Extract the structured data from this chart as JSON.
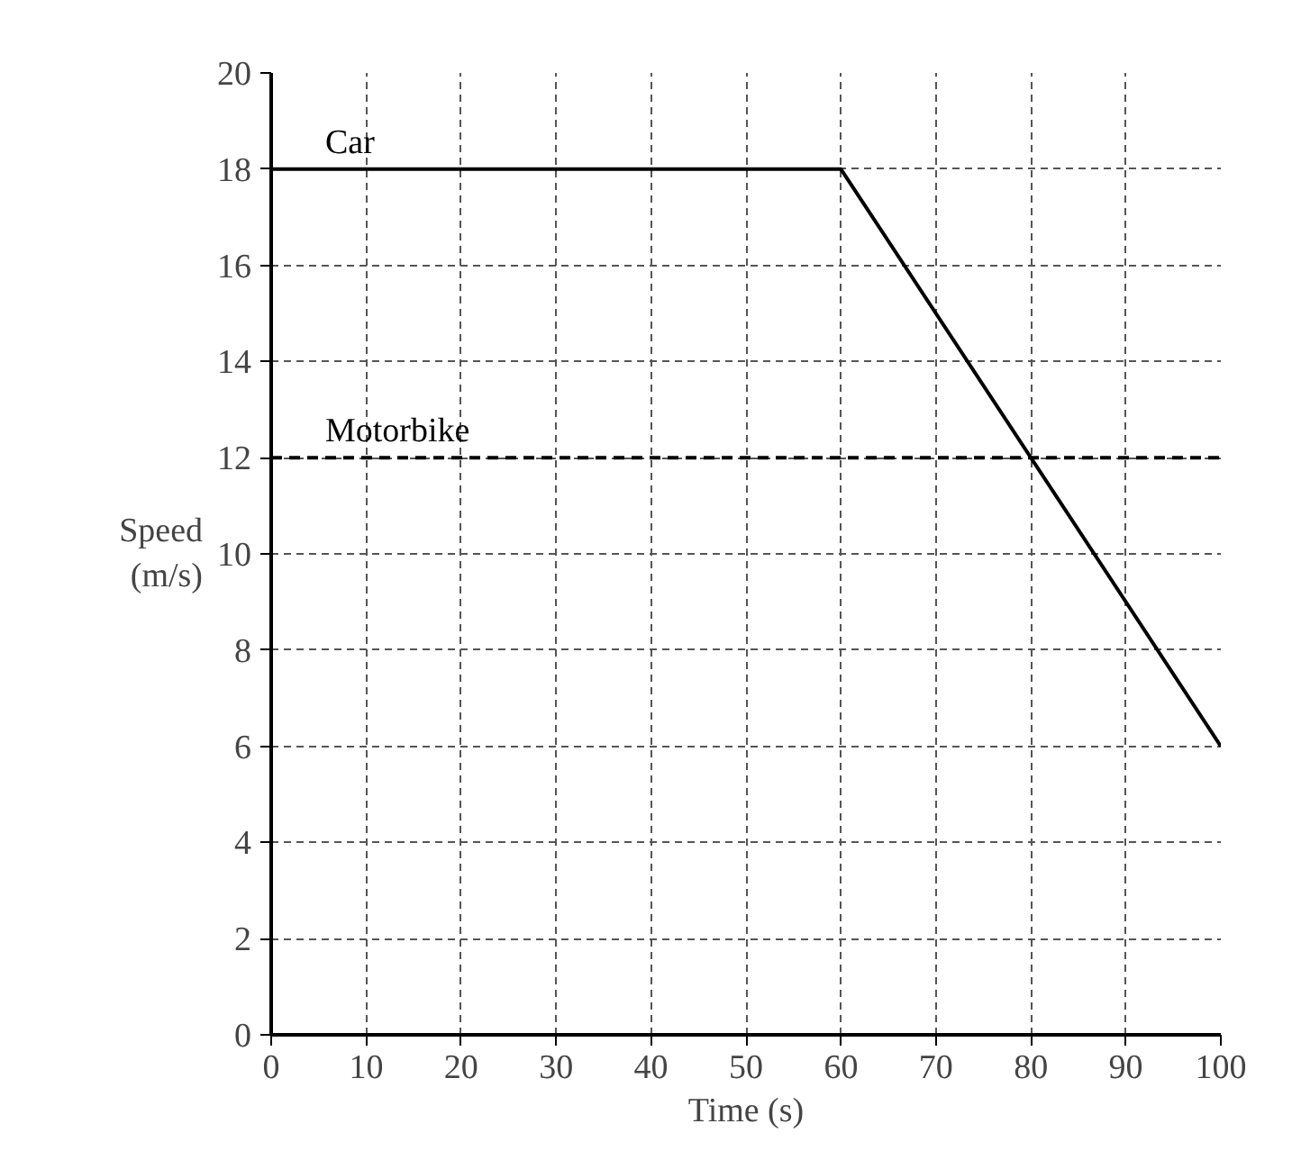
{
  "chart_data": {
    "type": "line",
    "xlabel": "Time (s)",
    "ylabel": "Speed\n(m/s)",
    "xlim": [
      0,
      100
    ],
    "ylim": [
      0,
      20
    ],
    "xticks": [
      0,
      10,
      20,
      30,
      40,
      50,
      60,
      70,
      80,
      90,
      100
    ],
    "yticks": [
      0,
      2,
      4,
      6,
      8,
      10,
      12,
      14,
      16,
      18,
      20
    ],
    "grid": true,
    "legend": false,
    "series": [
      {
        "name": "Car",
        "color": "#000000",
        "x": [
          0,
          60,
          100
        ],
        "values": [
          18,
          18,
          6
        ],
        "line_style": "solid"
      },
      {
        "name": "Motorbike",
        "color": "#000000",
        "x": [
          0,
          100
        ],
        "values": [
          12,
          12
        ],
        "line_style": "dashed"
      }
    ]
  }
}
